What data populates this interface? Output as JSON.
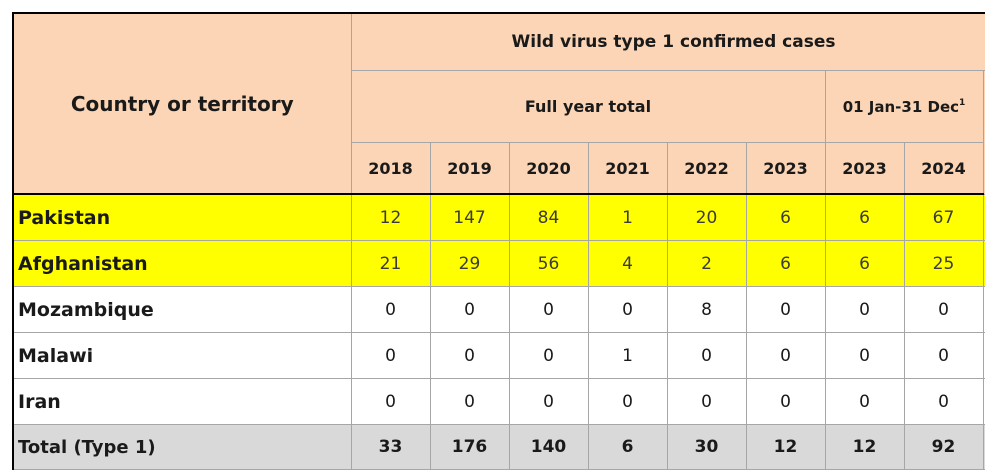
{
  "header": {
    "country_label": "Country or territory",
    "group_label": "Wild virus type 1 confirmed cases",
    "full_year_label": "Full year total",
    "period_label": "01 Jan-31 Dec",
    "period_footnote": "1",
    "years": [
      "2018",
      "2019",
      "2020",
      "2021",
      "2022",
      "2023",
      "2023",
      "2024"
    ]
  },
  "rows": [
    {
      "country": "Pakistan",
      "values": [
        "12",
        "147",
        "84",
        "1",
        "20",
        "6",
        "6",
        "67"
      ],
      "highlight": "#ffff00"
    },
    {
      "country": "Afghanistan",
      "values": [
        "21",
        "29",
        "56",
        "4",
        "2",
        "6",
        "6",
        "25"
      ],
      "highlight": "#ffff00"
    },
    {
      "country": "Mozambique",
      "values": [
        "0",
        "0",
        "0",
        "0",
        "8",
        "0",
        "0",
        "0"
      ]
    },
    {
      "country": "Malawi",
      "values": [
        "0",
        "0",
        "0",
        "1",
        "0",
        "0",
        "0",
        "0"
      ]
    },
    {
      "country": "Iran",
      "values": [
        "0",
        "0",
        "0",
        "0",
        "0",
        "0",
        "0",
        "0"
      ]
    }
  ],
  "total": {
    "label": "Total (Type 1)",
    "values": [
      "33",
      "176",
      "140",
      "6",
      "30",
      "12",
      "12",
      "92"
    ]
  },
  "colors": {
    "header_bg": "#fbd5b5",
    "highlight_bg": "#ffff00",
    "total_bg": "#d9d9d9",
    "grid": "#a6a6a6"
  }
}
